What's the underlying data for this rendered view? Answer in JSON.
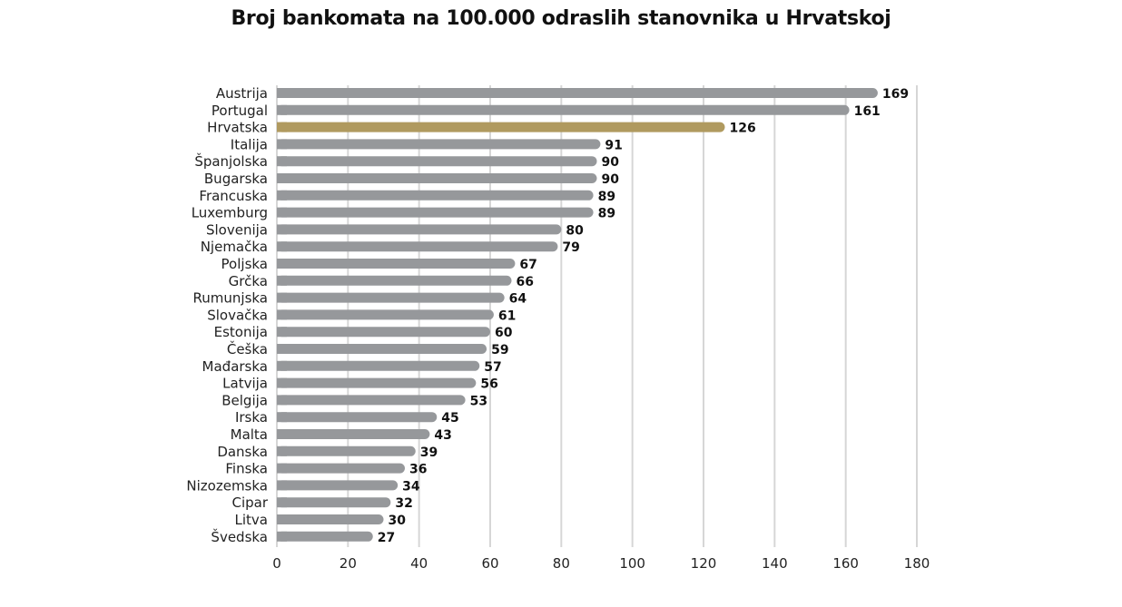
{
  "chart_data": {
    "type": "bar",
    "orientation": "horizontal",
    "title": "Broj bankomata na 100.000 odraslih stanovnika u Hrvatskoj",
    "xlabel": "",
    "ylabel": "",
    "xlim": [
      0,
      180
    ],
    "xticks": [
      0,
      20,
      40,
      60,
      80,
      100,
      120,
      140,
      160,
      180
    ],
    "grid": "vertical",
    "categories": [
      "Austrija",
      "Portugal",
      "Hrvatska",
      "Italija",
      "Španjolska",
      "Bugarska",
      "Francuska",
      "Luxemburg",
      "Slovenija",
      "Njemačka",
      "Poljska",
      "Grčka",
      "Rumunjska",
      "Slovačka",
      "Estonija",
      "Češka",
      "Mađarska",
      "Latvija",
      "Belgija",
      "Irska",
      "Malta",
      "Danska",
      "Finska",
      "Nizozemska",
      "Cipar",
      "Litva",
      "Švedska"
    ],
    "values": [
      169,
      161,
      126,
      91,
      90,
      90,
      89,
      89,
      80,
      79,
      67,
      66,
      64,
      61,
      60,
      59,
      57,
      56,
      53,
      45,
      43,
      39,
      36,
      34,
      32,
      30,
      27
    ],
    "highlight": "Hrvatska",
    "colors": {
      "bar": "#96989b",
      "highlight": "#b09a5f",
      "grid": "#d6d6d6"
    }
  }
}
